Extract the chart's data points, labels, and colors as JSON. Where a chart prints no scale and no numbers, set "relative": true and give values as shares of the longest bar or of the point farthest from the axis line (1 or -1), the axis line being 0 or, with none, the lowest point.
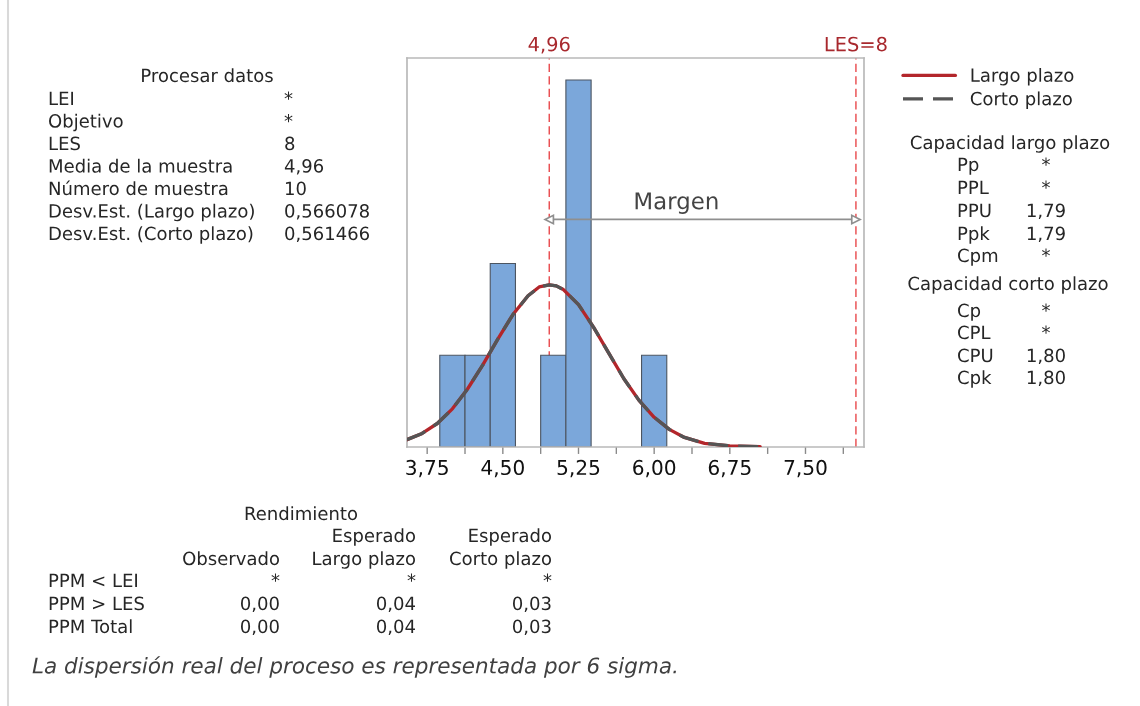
{
  "chart_data": {
    "type": "histogram",
    "relative": true,
    "bins": [
      3.875,
      4.125,
      4.375,
      4.625,
      4.875,
      5.125,
      5.375,
      5.875,
      6.125
    ],
    "values": [
      0.25,
      0.25,
      0.5,
      0,
      0.25,
      1,
      0,
      0.25
    ],
    "color": "#7ba7da",
    "series": [
      {
        "name": "Largo plazo",
        "type": "line",
        "color": "#b3262b",
        "line_style": "solid",
        "x": [
          3.55,
          3.7,
          3.85,
          4.0,
          4.15,
          4.3,
          4.45,
          4.6,
          4.75,
          4.86,
          4.96,
          5.03,
          5.1,
          5.25,
          5.4,
          5.55,
          5.7,
          5.85,
          6.0,
          6.15,
          6.3,
          6.5,
          6.75,
          7.05
        ],
        "values": [
          0.02,
          0.037,
          0.064,
          0.104,
          0.158,
          0.223,
          0.294,
          0.361,
          0.412,
          0.436,
          0.442,
          0.439,
          0.429,
          0.388,
          0.326,
          0.256,
          0.186,
          0.127,
          0.081,
          0.048,
          0.026,
          0.01,
          0.003,
          0.001
        ]
      },
      {
        "name": "Corto plazo",
        "type": "line",
        "color": "#555555",
        "line_style": "dashed",
        "x": [
          3.55,
          3.7,
          3.85,
          4.0,
          4.15,
          4.3,
          4.45,
          4.6,
          4.75,
          4.86,
          4.96,
          5.03,
          5.1,
          5.25,
          5.4,
          5.55,
          5.7,
          5.85,
          6.0,
          6.15,
          6.3,
          6.5,
          6.75,
          7.05
        ],
        "values": [
          0.02,
          0.037,
          0.064,
          0.104,
          0.158,
          0.223,
          0.294,
          0.361,
          0.412,
          0.436,
          0.442,
          0.439,
          0.429,
          0.388,
          0.326,
          0.256,
          0.186,
          0.127,
          0.081,
          0.048,
          0.026,
          0.01,
          0.003,
          0.001
        ]
      },
      {
        "type": "line",
        "color": "#8f8f8f",
        "line_style": "solid",
        "marker": "triangle",
        "x": [
          4.96,
          8
        ],
        "values": [
          0.62,
          0.62
        ]
      }
    ],
    "xlim": [
      3.55,
      8.08
    ],
    "xticks": [
      {
        "value": 3.75,
        "label": "3,75"
      },
      {
        "value": 4.125,
        "label": null
      },
      {
        "value": 4.5,
        "label": "4,50"
      },
      {
        "value": 4.875,
        "label": null
      },
      {
        "value": 5.25,
        "label": "5,25"
      },
      {
        "value": 5.625,
        "label": null
      },
      {
        "value": 6.0,
        "label": "6,00"
      },
      {
        "value": 6.375,
        "label": null
      },
      {
        "value": 6.75,
        "label": "6,75"
      },
      {
        "value": 7.125,
        "label": null
      },
      {
        "value": 7.5,
        "label": "7,50"
      },
      {
        "value": 7.875,
        "label": null
      }
    ],
    "tick_labels": "x",
    "legend": "right",
    "ref_lines": [
      {
        "axis": "x",
        "value": 4.96,
        "label": "4,96",
        "color": "#e8474a",
        "line_style": "dashed"
      },
      {
        "axis": "x",
        "value": 8,
        "label": "LES=8",
        "color": "#e8474a",
        "line_style": "dashed"
      }
    ],
    "annotations": [
      "Procesar datos",
      "LEI",
      "*",
      "Objetivo",
      "*",
      "LES",
      "8",
      "Media de la muestra",
      "4,96",
      "Número de muestra",
      "10",
      "Desv.Est. (Largo plazo)",
      "0,566078",
      "Desv.Est. (Corto plazo)",
      "0,561466",
      "Capacidad largo plazo",
      "Pp",
      "*",
      "PPL",
      "*",
      "PPU",
      "1,79",
      "Ppk",
      "1,79",
      "Cpm",
      "*",
      "Capacidad corto plazo",
      "Cp",
      "*",
      "CPL",
      "*",
      "CPU",
      "1,80",
      "Cpk",
      "1,80",
      "Rendimiento",
      "Esperado",
      "Esperado",
      "Observado",
      "Largo plazo",
      "Corto plazo",
      "PPM < LEI",
      "*",
      "*",
      "*",
      "PPM > LES",
      "0,00",
      "0,04",
      "0,03",
      "PPM Total",
      "0,00",
      "0,04",
      "0,03",
      "La dispersión real del proceso es representada por 6 sigma.",
      {
        "text": "Margen",
        "x": 6.22,
        "y": 0.62
      }
    ]
  }
}
